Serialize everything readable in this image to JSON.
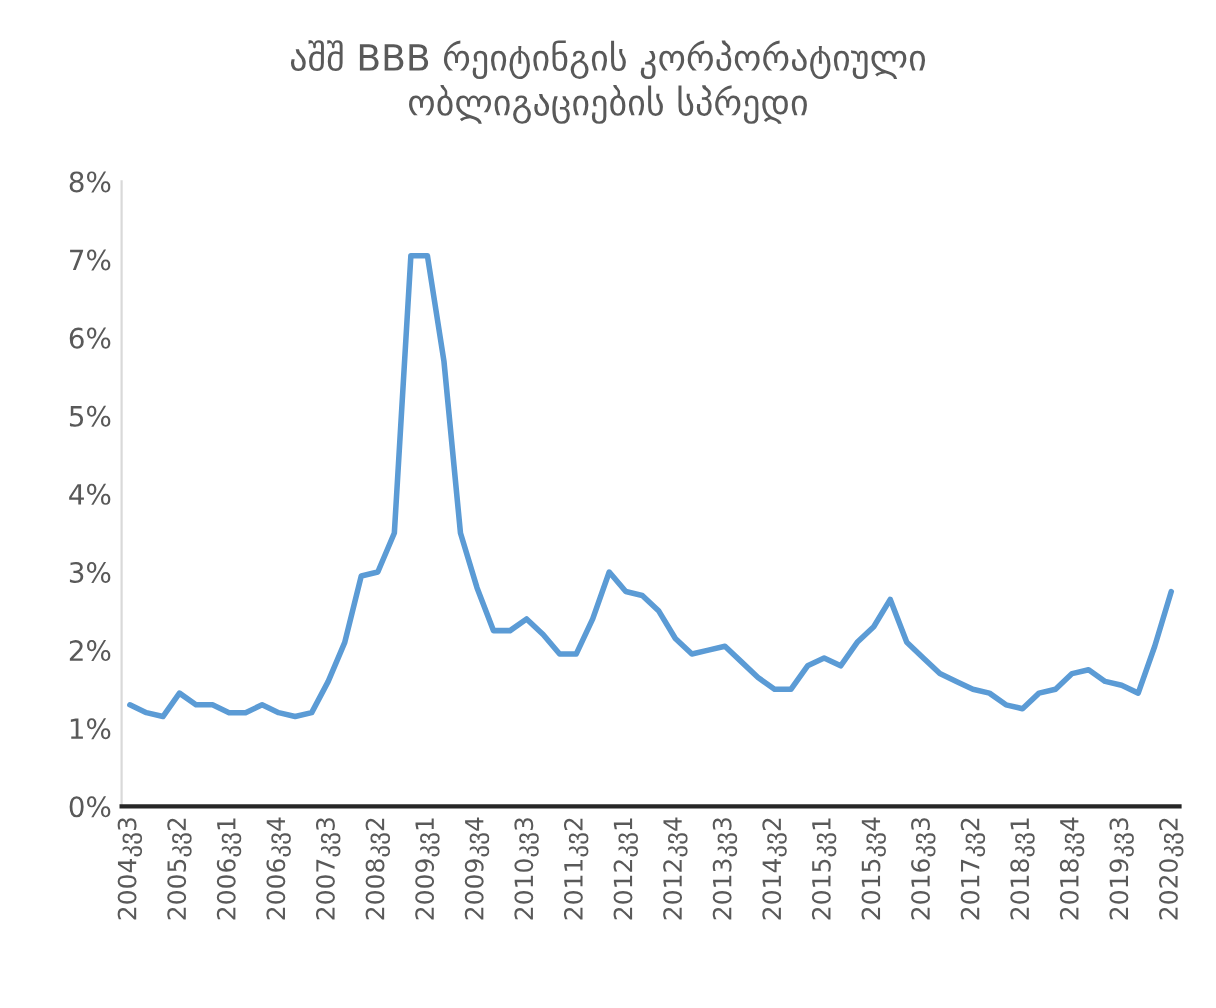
{
  "chart_data": {
    "type": "line",
    "title": "აშშ BBB რეიტინგის კორპორატიული\nობლიგაციების სპრედი",
    "categories": [
      "2004კვ3",
      null,
      null,
      "2005კვ2",
      null,
      null,
      "2006კვ1",
      null,
      null,
      "2006კვ4",
      null,
      null,
      "2007კვ3",
      null,
      null,
      "2008კვ2",
      null,
      null,
      "2009კვ1",
      null,
      null,
      "2009კვ4",
      null,
      null,
      "2010კვ3",
      null,
      null,
      "2011კვ2",
      null,
      null,
      "2012კვ1",
      null,
      null,
      "2012კვ4",
      null,
      null,
      "2013კვ3",
      null,
      null,
      "2014კვ2",
      null,
      null,
      "2015კვ1",
      null,
      null,
      "2015კვ4",
      null,
      null,
      "2016კვ3",
      null,
      null,
      "2017კვ2",
      null,
      null,
      "2018კვ1",
      null,
      null,
      "2018კვ4",
      null,
      null,
      "2019კვ3",
      null,
      null,
      "2020კვ2"
    ],
    "series": [
      {
        "color": "#5b9bd5",
        "values": [
          1.3,
          1.2,
          1.15,
          1.45,
          1.3,
          1.3,
          1.2,
          1.2,
          1.3,
          1.2,
          1.15,
          1.2,
          1.6,
          2.1,
          2.95,
          3.0,
          3.5,
          7.05,
          7.05,
          5.7,
          3.5,
          2.8,
          2.25,
          2.25,
          2.4,
          2.2,
          1.95,
          1.95,
          2.4,
          3.0,
          2.75,
          2.7,
          2.5,
          2.15,
          1.95,
          2.0,
          2.05,
          1.85,
          1.65,
          1.5,
          1.5,
          1.8,
          1.9,
          1.8,
          2.1,
          2.3,
          2.65,
          2.1,
          1.9,
          1.7,
          1.6,
          1.5,
          1.45,
          1.3,
          1.25,
          1.45,
          1.5,
          1.7,
          1.75,
          1.6,
          1.55,
          1.45,
          2.05,
          2.75
        ]
      }
    ],
    "ylim": [
      0,
      8
    ],
    "yticks": [
      {
        "value": 0,
        "label": "0%"
      },
      {
        "value": 1,
        "label": "1%"
      },
      {
        "value": 2,
        "label": "2%"
      },
      {
        "value": 3,
        "label": "3%"
      },
      {
        "value": 4,
        "label": "4%"
      },
      {
        "value": 5,
        "label": "5%"
      },
      {
        "value": 6,
        "label": "6%"
      },
      {
        "value": 7,
        "label": "7%"
      },
      {
        "value": 8,
        "label": "8%"
      }
    ],
    "grid": false,
    "legend": false,
    "marker": "none",
    "line_style": "solid"
  }
}
